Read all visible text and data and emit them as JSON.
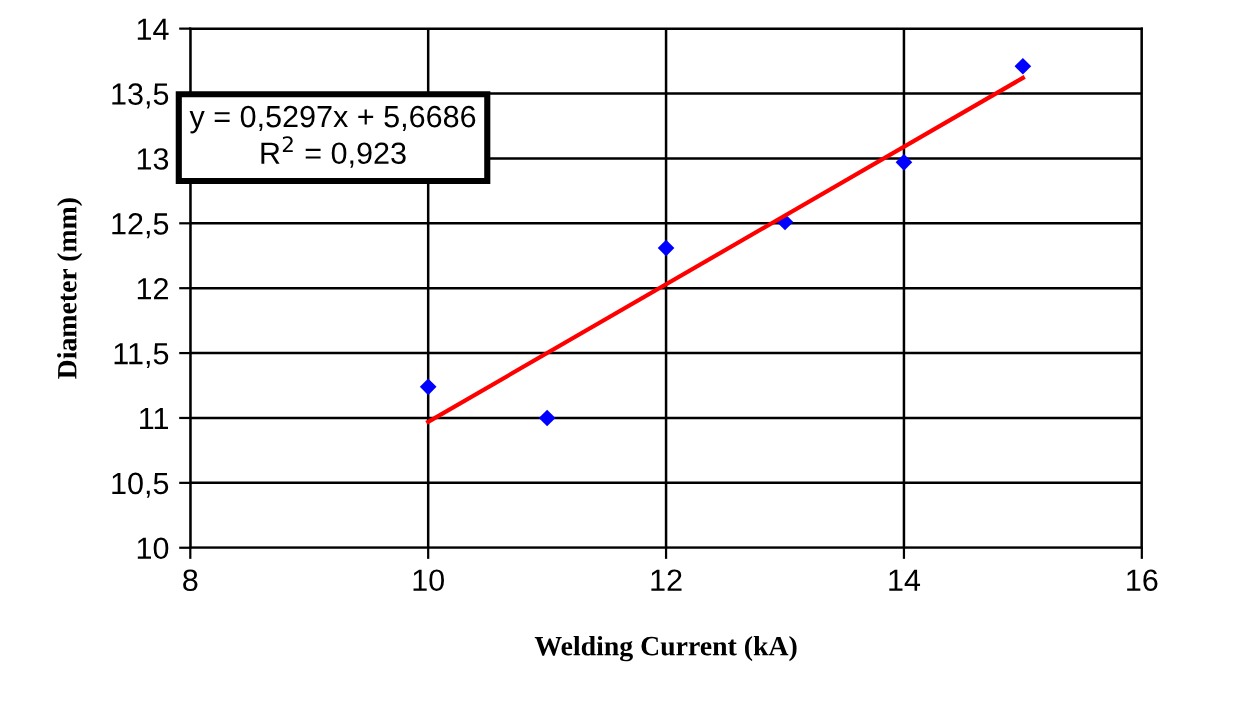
{
  "chart_data": {
    "type": "scatter",
    "xlabel": "Welding Current (kA)",
    "ylabel": "Diameter (mm)",
    "xlim": [
      8,
      16
    ],
    "xticks": [
      8,
      10,
      12,
      14,
      16
    ],
    "ylim": [
      10,
      14
    ],
    "yticks": [
      10,
      {
        "value": 10.5,
        "label": "10,5"
      },
      11,
      {
        "value": 11.5,
        "label": "11,5"
      },
      12,
      {
        "value": 12.5,
        "label": "12,5"
      },
      13,
      {
        "value": 13.5,
        "label": "13,5"
      },
      14
    ],
    "grid": true,
    "marker": "diamond",
    "series": [
      {
        "color": "#0000ff",
        "x": [
          10,
          11,
          12,
          13,
          14,
          15
        ],
        "values": [
          11.24,
          11.0,
          12.31,
          12.51,
          12.97,
          13.71
        ]
      },
      {
        "type": "line",
        "color": "#ff0000",
        "marker": "none",
        "x": [
          10,
          15
        ],
        "values": [
          10.97,
          13.62
        ]
      }
    ],
    "annotations": [
      "y = 0,5297x + 5,6686\nR$^{2}$ = 0,923"
    ]
  }
}
